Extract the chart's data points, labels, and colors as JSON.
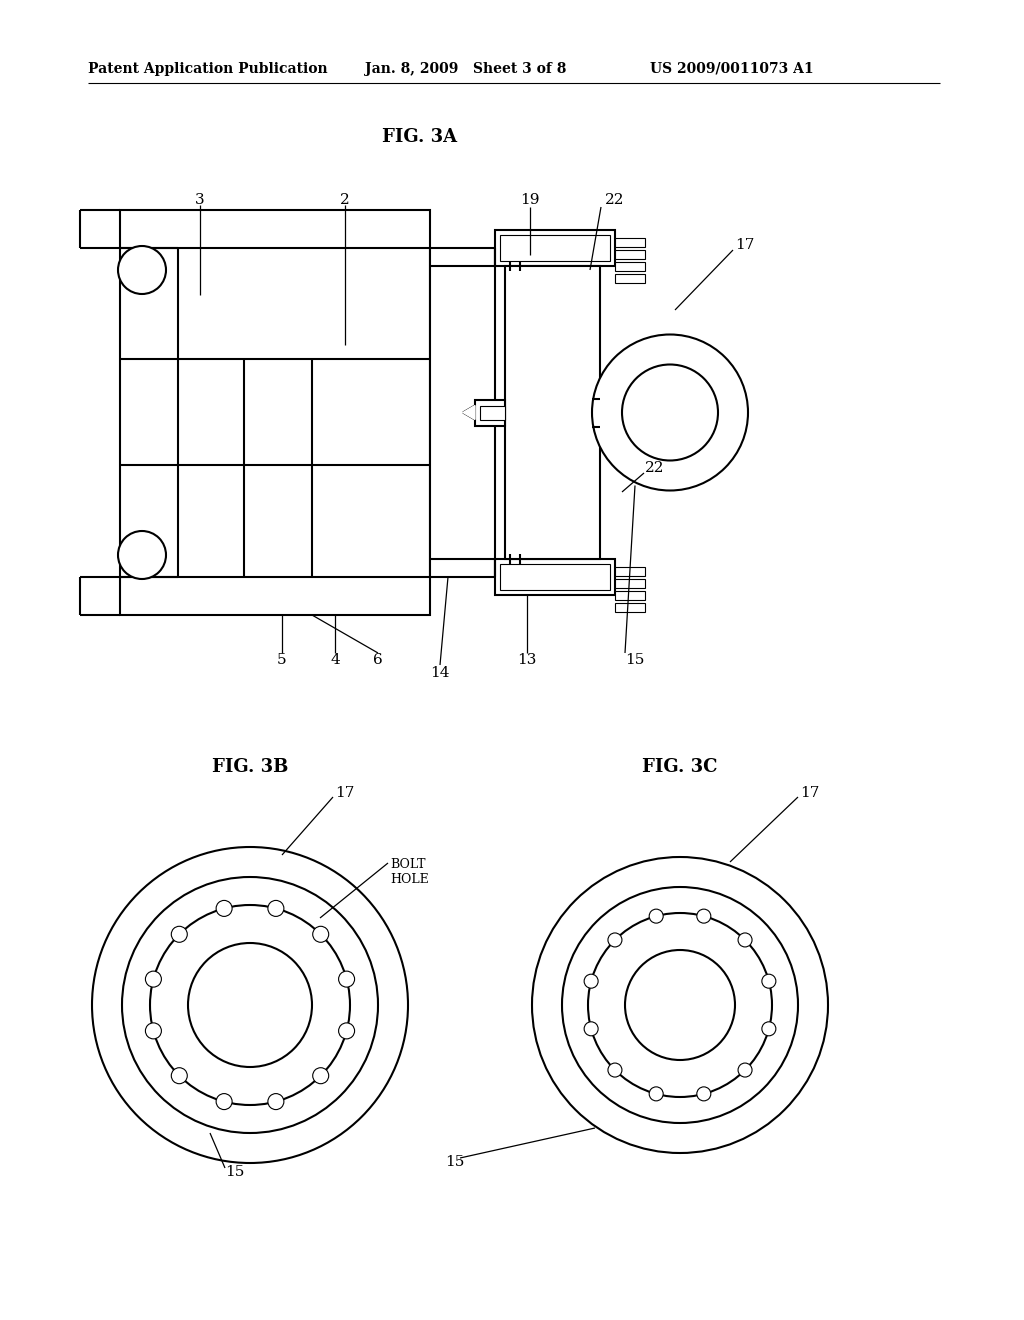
{
  "bg_color": "#ffffff",
  "header_left": "Patent Application Publication",
  "header_mid": "Jan. 8, 2009   Sheet 3 of 8",
  "header_right": "US 2009/0011073 A1",
  "fig3a_label": "FIG. 3A",
  "fig3b_label": "FIG. 3B",
  "fig3c_label": "FIG. 3C",
  "line_color": "#000000",
  "lw_main": 1.5,
  "lw_thin": 0.9,
  "text_color": "#000000",
  "font_label": 11,
  "font_fig": 13,
  "font_header": 10
}
